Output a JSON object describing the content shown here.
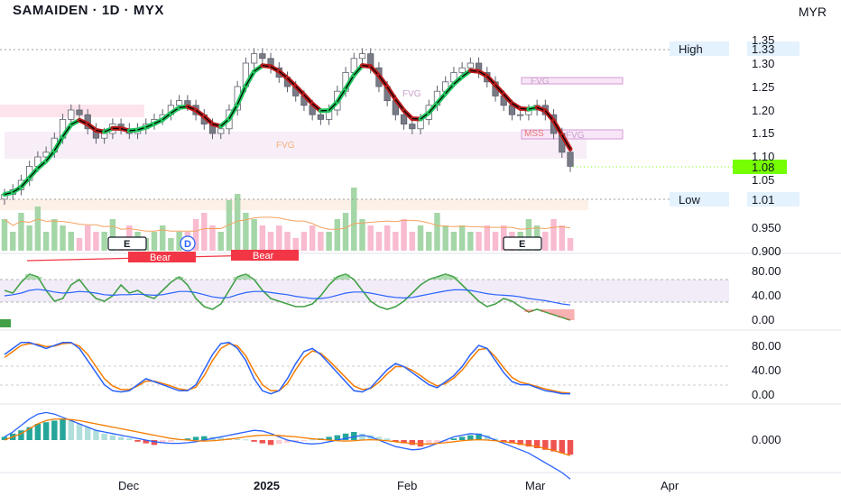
{
  "header": {
    "title": "SAMAIDEN · 1D · MYX",
    "currency": "MYR"
  },
  "chart_data": [
    {
      "type": "candlestick",
      "ylim": [
        0.9,
        1.35
      ],
      "price_ticks": [
        "1.35",
        "1.30",
        "1.25",
        "1.20",
        "1.15",
        "1.10",
        "1.05",
        "0.950",
        "0.900"
      ],
      "x_labels": [
        "Dec",
        "2025",
        "Feb",
        "Mar",
        "Apr"
      ],
      "high": {
        "label": "High",
        "value": "1.33"
      },
      "low": {
        "label": "Low",
        "value": "1.01"
      },
      "last_price": "1.08",
      "fvg_labels": [
        "FVG",
        "FVG",
        "FVG",
        "FVG"
      ],
      "mss_label": "MSS",
      "close": [
        1.02,
        1.03,
        1.05,
        1.08,
        1.1,
        1.11,
        1.14,
        1.18,
        1.2,
        1.19,
        1.16,
        1.14,
        1.15,
        1.17,
        1.16,
        1.15,
        1.16,
        1.17,
        1.18,
        1.19,
        1.21,
        1.22,
        1.21,
        1.19,
        1.17,
        1.15,
        1.16,
        1.2,
        1.25,
        1.3,
        1.32,
        1.31,
        1.29,
        1.27,
        1.25,
        1.23,
        1.21,
        1.19,
        1.18,
        1.2,
        1.24,
        1.28,
        1.31,
        1.32,
        1.29,
        1.25,
        1.22,
        1.19,
        1.17,
        1.16,
        1.18,
        1.21,
        1.24,
        1.26,
        1.28,
        1.29,
        1.3,
        1.28,
        1.26,
        1.23,
        1.21,
        1.19,
        1.19,
        1.2,
        1.21,
        1.19,
        1.15,
        1.11,
        1.08
      ]
    },
    {
      "type": "bar",
      "name": "volume",
      "markers": [
        "E",
        "D",
        "E"
      ],
      "signals": [
        "Bear",
        "Bear"
      ],
      "values": [
        0.5,
        0.3,
        0.6,
        0.4,
        0.7,
        0.3,
        0.5,
        0.4,
        0.3,
        0.2,
        0.4,
        0.3,
        0.3,
        0.5,
        0.2,
        0.4,
        0.3,
        0.2,
        0.3,
        0.4,
        0.2,
        0.3,
        0.3,
        0.5,
        0.6,
        0.4,
        0.3,
        0.8,
        0.9,
        0.6,
        0.5,
        0.4,
        0.3,
        0.4,
        0.3,
        0.2,
        0.3,
        0.4,
        0.3,
        0.3,
        0.5,
        0.6,
        1.0,
        0.5,
        0.4,
        0.3,
        0.4,
        0.3,
        0.5,
        0.3,
        0.4,
        0.3,
        0.6,
        0.4,
        0.3,
        0.4,
        0.3,
        0.3,
        0.4,
        0.3,
        0.4,
        0.3,
        0.3,
        0.5,
        0.4,
        0.3,
        0.5,
        0.4,
        0.2
      ]
    },
    {
      "type": "line",
      "name": "oscillator-1",
      "ylim": [
        0,
        100
      ],
      "ticks": [
        "80.00",
        "40.00",
        "0.00"
      ],
      "series": [
        {
          "values": [
            60,
            55,
            75,
            90,
            85,
            60,
            40,
            45,
            70,
            80,
            60,
            45,
            40,
            50,
            70,
            55,
            60,
            50,
            45,
            60,
            75,
            85,
            70,
            45,
            30,
            25,
            35,
            60,
            85,
            90,
            80,
            60,
            45,
            40,
            35,
            30,
            30,
            35,
            50,
            70,
            85,
            90,
            80,
            60,
            40,
            30,
            25,
            30,
            40,
            55,
            70,
            80,
            85,
            90,
            85,
            70,
            55,
            40,
            30,
            35,
            45,
            40,
            30,
            20,
            25,
            20,
            15,
            10,
            5
          ]
        },
        {
          "values": [
            50,
            52,
            55,
            60,
            62,
            60,
            57,
            55,
            56,
            58,
            57,
            55,
            52,
            51,
            52,
            52,
            53,
            52,
            51,
            52,
            55,
            58,
            58,
            56,
            52,
            48,
            46,
            47,
            52,
            56,
            58,
            58,
            56,
            54,
            52,
            49,
            47,
            45,
            45,
            47,
            51,
            55,
            57,
            57,
            55,
            52,
            49,
            47,
            46,
            47,
            50,
            53,
            56,
            59,
            61,
            61,
            60,
            57,
            54,
            52,
            51,
            50,
            48,
            45,
            43,
            41,
            38,
            35,
            33
          ]
        }
      ]
    },
    {
      "type": "line",
      "name": "oscillator-2",
      "ylim": [
        0,
        100
      ],
      "ticks": [
        "80.00",
        "40.00",
        "0.00"
      ],
      "series": [
        {
          "values": [
            70,
            80,
            90,
            90,
            85,
            80,
            85,
            90,
            90,
            80,
            60,
            40,
            20,
            10,
            8,
            10,
            20,
            30,
            25,
            20,
            15,
            10,
            10,
            20,
            45,
            70,
            88,
            90,
            80,
            60,
            30,
            10,
            5,
            10,
            30,
            55,
            75,
            80,
            70,
            55,
            40,
            25,
            10,
            8,
            15,
            30,
            45,
            55,
            50,
            40,
            30,
            20,
            15,
            25,
            35,
            50,
            70,
            85,
            80,
            60,
            40,
            25,
            20,
            20,
            15,
            10,
            8,
            5,
            5
          ]
        },
        {
          "values": [
            65,
            75,
            85,
            88,
            87,
            83,
            84,
            88,
            89,
            84,
            70,
            50,
            30,
            18,
            12,
            12,
            18,
            26,
            26,
            22,
            18,
            13,
            11,
            16,
            35,
            60,
            80,
            88,
            84,
            68,
            42,
            20,
            10,
            10,
            22,
            45,
            65,
            76,
            72,
            60,
            46,
            32,
            18,
            12,
            14,
            24,
            38,
            50,
            50,
            44,
            35,
            25,
            18,
            22,
            31,
            44,
            62,
            78,
            80,
            66,
            48,
            32,
            24,
            21,
            17,
            13,
            10,
            7,
            6
          ]
        }
      ]
    },
    {
      "type": "bar",
      "name": "histogram",
      "ticks": [
        "0.000"
      ],
      "values": [
        0.1,
        0.2,
        0.3,
        0.4,
        0.5,
        0.55,
        0.6,
        0.65,
        0.6,
        0.5,
        0.4,
        0.3,
        0.2,
        0.15,
        0.1,
        0.05,
        -0.05,
        -0.1,
        -0.15,
        -0.1,
        -0.05,
        0.02,
        0.05,
        0.1,
        0.12,
        0.1,
        0.08,
        0.05,
        0.03,
        0.02,
        -0.05,
        -0.1,
        -0.15,
        -0.12,
        -0.08,
        -0.05,
        -0.03,
        0.02,
        0.05,
        0.1,
        0.15,
        0.2,
        0.25,
        0.2,
        0.15,
        0.1,
        0.05,
        -0.05,
        -0.1,
        -0.15,
        -0.2,
        -0.15,
        -0.1,
        -0.05,
        0.05,
        0.1,
        0.15,
        0.2,
        0.15,
        0.05,
        -0.05,
        -0.1,
        -0.15,
        -0.2,
        -0.25,
        -0.3,
        -0.35,
        -0.4,
        -0.45
      ],
      "series": [
        {
          "values": [
            0.1,
            0.25,
            0.45,
            0.65,
            0.8,
            0.85,
            0.8,
            0.7,
            0.6,
            0.5,
            0.4,
            0.3,
            0.25,
            0.2,
            0.15,
            0.1,
            0.05,
            0.0,
            -0.05,
            -0.08,
            -0.1,
            -0.1,
            -0.08,
            -0.05,
            0.0,
            0.05,
            0.1,
            0.15,
            0.2,
            0.25,
            0.3,
            0.28,
            0.2,
            0.1,
            0.0,
            -0.05,
            -0.1,
            -0.12,
            -0.1,
            -0.05,
            0.0,
            0.05,
            0.1,
            0.15,
            0.1,
            0.0,
            -0.1,
            -0.2,
            -0.25,
            -0.3,
            -0.28,
            -0.2,
            -0.1,
            0.0,
            0.1,
            0.15,
            0.2,
            0.18,
            0.1,
            0.0,
            -0.1,
            -0.2,
            -0.3,
            -0.4,
            -0.55,
            -0.7,
            -0.85,
            -1.0,
            -1.2
          ]
        },
        {
          "values": [
            0.0,
            0.1,
            0.2,
            0.35,
            0.5,
            0.6,
            0.65,
            0.65,
            0.63,
            0.6,
            0.55,
            0.5,
            0.45,
            0.4,
            0.35,
            0.3,
            0.25,
            0.2,
            0.15,
            0.1,
            0.05,
            0.02,
            0.0,
            -0.02,
            -0.03,
            -0.02,
            0.0,
            0.03,
            0.06,
            0.1,
            0.13,
            0.15,
            0.15,
            0.14,
            0.12,
            0.1,
            0.07,
            0.04,
            0.02,
            0.0,
            -0.02,
            -0.03,
            -0.02,
            0.0,
            0.01,
            0.0,
            -0.02,
            -0.05,
            -0.08,
            -0.1,
            -0.12,
            -0.12,
            -0.1,
            -0.08,
            -0.05,
            -0.02,
            0.0,
            0.01,
            0.0,
            -0.02,
            -0.05,
            -0.08,
            -0.12,
            -0.16,
            -0.2,
            -0.26,
            -0.32,
            -0.4,
            -0.48
          ]
        }
      ]
    }
  ],
  "colors": {
    "bull": "#22c55e",
    "bear": "#b91c1c",
    "candle_up": "#089981",
    "candle_down": "#f23645",
    "blue": "#2962ff",
    "orange": "#f57c00",
    "osc_green": "#43a047",
    "vol_green": "#a5d6a7",
    "vol_pink": "#f8bbd0",
    "fvg_pink": "#f3e5f5",
    "hist_pos_strong": "#26a69a",
    "hist_pos_weak": "#b2dfdb",
    "hist_neg_strong": "#ef5350",
    "hist_neg_weak": "#ffcdd2",
    "last_tag": "#76ff03",
    "range_tag": "#e3f2fd"
  }
}
